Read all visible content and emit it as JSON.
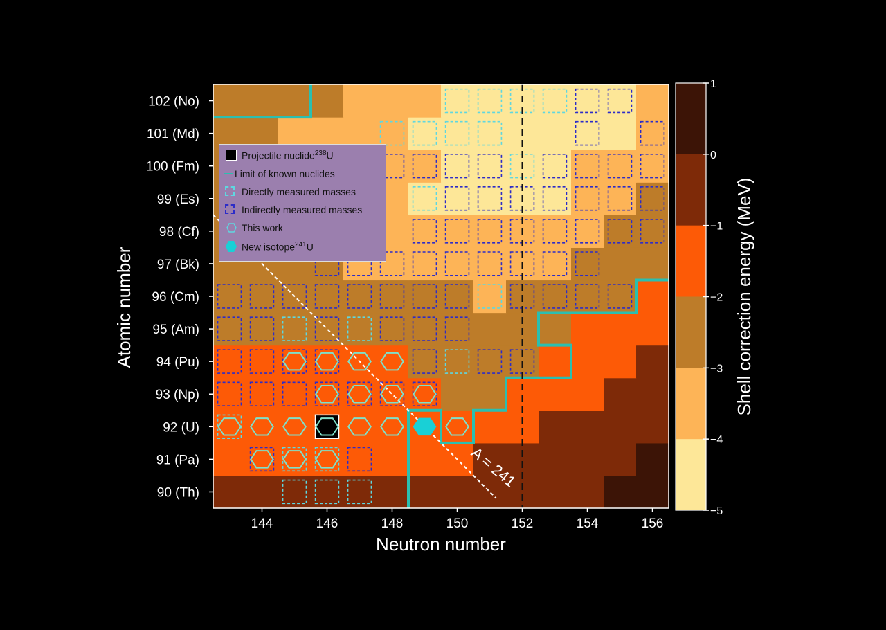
{
  "chart_data": {
    "type": "heatmap",
    "title": "",
    "xlabel": "Neutron number",
    "ylabel": "Atomic number",
    "colorbar_label": "Shell correction energy (MeV)",
    "x_range": [
      143,
      156
    ],
    "x_ticks": [
      144,
      146,
      148,
      150,
      152,
      154,
      156
    ],
    "z_values": [
      90,
      91,
      92,
      93,
      94,
      95,
      96,
      97,
      98,
      99,
      100,
      101,
      102
    ],
    "y_tick_labels": [
      "90 (Th)",
      "91 (Pa)",
      "92 (U)",
      "93 (Np)",
      "94 (Pu)",
      "95 (Am)",
      "96 (Cm)",
      "97 (Bk)",
      "98 (Cf)",
      "99 (Es)",
      "100 (Fm)",
      "101 (Md)",
      "102 (No)"
    ],
    "colorbar_ticks": [
      "1",
      "0",
      "−1",
      "−2",
      "−3",
      "−4",
      "−5"
    ],
    "colorbar_range": [
      -5,
      1
    ],
    "color_bins": [
      {
        "range": [
          0,
          1
        ],
        "color": "#3c1406"
      },
      {
        "range": [
          -1,
          0
        ],
        "color": "#7e2a08"
      },
      {
        "range": [
          -2,
          -1
        ],
        "color": "#fd5a06"
      },
      {
        "range": [
          -3,
          -2
        ],
        "color": "#bd7c29"
      },
      {
        "range": [
          -4,
          -3
        ],
        "color": "#fdb457"
      },
      {
        "range": [
          -5,
          -4
        ],
        "color": "#fde798"
      }
    ],
    "shell_correction_bins": {
      "description": "bin index per nuclide: 0 => [0,1], 1 => [-1,0], 2 => [-2,-1], 3 => [-3,-2], 4 => [-4,-3], 5 => [-5,-4]; rows listed by Z from 90 to 102, columns N from 143 to 156",
      "rows": {
        "90": [
          1,
          1,
          1,
          1,
          1,
          1,
          1,
          1,
          1,
          1,
          1,
          1,
          0,
          0
        ],
        "91": [
          2,
          2,
          2,
          2,
          2,
          2,
          2,
          2,
          1,
          1,
          1,
          1,
          1,
          0
        ],
        "92": [
          2,
          2,
          2,
          2,
          2,
          2,
          2,
          2,
          2,
          2,
          1,
          1,
          1,
          1
        ],
        "93": [
          2,
          2,
          2,
          2,
          2,
          2,
          2,
          3,
          3,
          2,
          2,
          2,
          1,
          1
        ],
        "94": [
          2,
          2,
          2,
          2,
          2,
          2,
          3,
          3,
          3,
          3,
          2,
          2,
          2,
          1
        ],
        "95": [
          3,
          3,
          3,
          3,
          3,
          3,
          3,
          3,
          3,
          3,
          3,
          2,
          2,
          2
        ],
        "96": [
          3,
          3,
          3,
          3,
          3,
          3,
          3,
          3,
          4,
          3,
          3,
          3,
          3,
          2
        ],
        "97": [
          3,
          3,
          3,
          3,
          4,
          4,
          4,
          4,
          4,
          4,
          4,
          3,
          3,
          3
        ],
        "98": [
          3,
          3,
          3,
          4,
          4,
          4,
          4,
          4,
          4,
          4,
          4,
          4,
          3,
          3
        ],
        "99": [
          3,
          3,
          3,
          4,
          4,
          4,
          5,
          5,
          5,
          5,
          5,
          4,
          4,
          3
        ],
        "100": [
          3,
          3,
          3,
          4,
          4,
          4,
          4,
          5,
          5,
          5,
          5,
          4,
          4,
          4
        ],
        "101": [
          3,
          3,
          4,
          4,
          4,
          4,
          5,
          5,
          5,
          5,
          5,
          5,
          5,
          4
        ],
        "102": [
          3,
          3,
          3,
          3,
          4,
          4,
          4,
          5,
          5,
          5,
          5,
          5,
          5,
          4
        ]
      }
    },
    "projectile_nuclide": {
      "N": 146,
      "Z": 92,
      "label": "238U"
    },
    "new_isotope": {
      "N": 149,
      "Z": 92,
      "label": "241U"
    },
    "this_work": [
      [
        143,
        92
      ],
      [
        144,
        92
      ],
      [
        145,
        92
      ],
      [
        147,
        92
      ],
      [
        148,
        92
      ],
      [
        150,
        92
      ],
      [
        146,
        93
      ],
      [
        147,
        93
      ],
      [
        148,
        93
      ],
      [
        149,
        93
      ],
      [
        145,
        94
      ],
      [
        146,
        94
      ],
      [
        147,
        94
      ],
      [
        148,
        94
      ],
      [
        144,
        91
      ],
      [
        145,
        91
      ],
      [
        146,
        91
      ]
    ],
    "directly_measured": [
      [
        143,
        92
      ],
      [
        146,
        92
      ],
      [
        145,
        91
      ],
      [
        146,
        91
      ],
      [
        145,
        90
      ],
      [
        146,
        90
      ],
      [
        147,
        90
      ],
      [
        145,
        95
      ],
      [
        147,
        95
      ],
      [
        150,
        94
      ],
      [
        151,
        96
      ],
      [
        149,
        99
      ],
      [
        152,
        100
      ],
      [
        150,
        102
      ],
      [
        151,
        102
      ],
      [
        152,
        102
      ],
      [
        153,
        102
      ],
      [
        148,
        101
      ],
      [
        149,
        101
      ],
      [
        150,
        101
      ],
      [
        151,
        101
      ]
    ],
    "indirectly_measured": [
      [
        144,
        91
      ],
      [
        145,
        90
      ],
      [
        147,
        91
      ],
      [
        143,
        93
      ],
      [
        144,
        93
      ],
      [
        145,
        93
      ],
      [
        146,
        93
      ],
      [
        147,
        93
      ],
      [
        148,
        93
      ],
      [
        149,
        93
      ],
      [
        143,
        94
      ],
      [
        144,
        94
      ],
      [
        145,
        94
      ],
      [
        146,
        94
      ],
      [
        149,
        94
      ],
      [
        150,
        94
      ],
      [
        151,
        94
      ],
      [
        152,
        94
      ],
      [
        143,
        95
      ],
      [
        144,
        95
      ],
      [
        145,
        95
      ],
      [
        146,
        95
      ],
      [
        147,
        95
      ],
      [
        148,
        95
      ],
      [
        149,
        95
      ],
      [
        150,
        95
      ],
      [
        143,
        96
      ],
      [
        144,
        96
      ],
      [
        145,
        96
      ],
      [
        146,
        96
      ],
      [
        147,
        96
      ],
      [
        148,
        96
      ],
      [
        149,
        96
      ],
      [
        150,
        96
      ],
      [
        151,
        96
      ],
      [
        152,
        96
      ],
      [
        153,
        96
      ],
      [
        154,
        96
      ],
      [
        155,
        96
      ],
      [
        146,
        97
      ],
      [
        147,
        97
      ],
      [
        148,
        97
      ],
      [
        149,
        97
      ],
      [
        150,
        97
      ],
      [
        151,
        97
      ],
      [
        152,
        97
      ],
      [
        153,
        97
      ],
      [
        154,
        97
      ],
      [
        149,
        98
      ],
      [
        150,
        98
      ],
      [
        151,
        98
      ],
      [
        152,
        98
      ],
      [
        153,
        98
      ],
      [
        154,
        98
      ],
      [
        155,
        98
      ],
      [
        156,
        98
      ],
      [
        149,
        99
      ],
      [
        150,
        99
      ],
      [
        151,
        99
      ],
      [
        152,
        99
      ],
      [
        153,
        99
      ],
      [
        154,
        99
      ],
      [
        155,
        99
      ],
      [
        156,
        99
      ],
      [
        148,
        100
      ],
      [
        149,
        100
      ],
      [
        150,
        100
      ],
      [
        151,
        100
      ],
      [
        152,
        100
      ],
      [
        153,
        100
      ],
      [
        154,
        100
      ],
      [
        155,
        100
      ],
      [
        156,
        100
      ],
      [
        148,
        101
      ],
      [
        149,
        101
      ],
      [
        150,
        101
      ],
      [
        151,
        101
      ],
      [
        154,
        101
      ],
      [
        156,
        101
      ],
      [
        150,
        102
      ],
      [
        151,
        102
      ],
      [
        152,
        102
      ],
      [
        153,
        102
      ],
      [
        154,
        102
      ],
      [
        155,
        102
      ]
    ],
    "limit_of_known_nuclides": [
      [
        142.5,
        101.5
      ],
      [
        145.5,
        101.5
      ],
      [
        145.5,
        102.5
      ]
    ],
    "limit_of_known_nuclides_lower": [
      [
        148.5,
        89.5
      ],
      [
        148.5,
        92.5
      ],
      [
        149.5,
        92.5
      ],
      [
        149.5,
        91.5
      ],
      [
        150.5,
        91.5
      ],
      [
        150.5,
        92.5
      ],
      [
        151.5,
        92.5
      ],
      [
        151.5,
        93.5
      ],
      [
        153.5,
        93.5
      ],
      [
        153.5,
        94.5
      ],
      [
        152.5,
        94.5
      ],
      [
        152.5,
        95.5
      ],
      [
        155.5,
        95.5
      ],
      [
        155.5,
        96.5
      ],
      [
        156.5,
        96.5
      ]
    ],
    "dashed_vertical_N": 152,
    "isobar_line_label": "A = 241",
    "isobar_A": 241
  },
  "legend": {
    "projectile": "Projectile nuclide",
    "projectile_sup": "238",
    "projectile_elem": "U",
    "limit": "Limit of known nuclides",
    "direct": "Directly measured masses",
    "indirect": "Indirectly measured masses",
    "this_work": "This work",
    "new_isotope": "New isotope",
    "new_isotope_sup": "241",
    "new_isotope_elem": "U"
  },
  "colors": {
    "limit_line": "#2bbfb0",
    "direct_box": "#5fd7e0",
    "indirect_box": "#2c2cc8",
    "hexagon": "#7fe0c9",
    "new_isotope_fill": "#19d0d6",
    "isobar_line": "#ffffff",
    "n152_line": "#111111"
  }
}
